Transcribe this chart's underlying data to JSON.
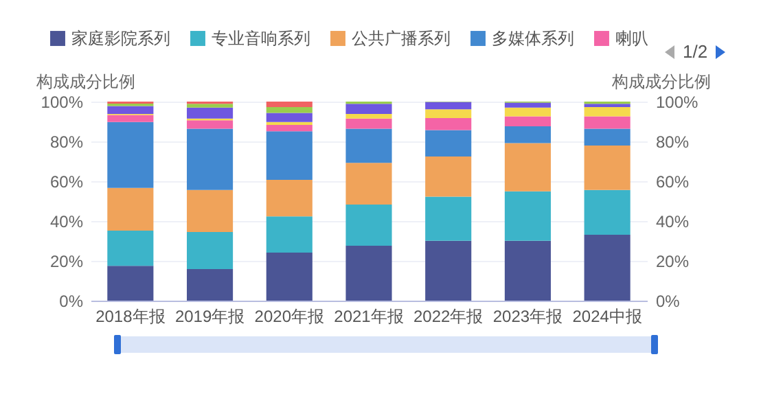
{
  "chart_data": {
    "type": "bar",
    "stacked": true,
    "ylabel": "构成成分比例",
    "y2label": "构成成分比例",
    "categories": [
      "2018年报",
      "2019年报",
      "2020年报",
      "2021年报",
      "2022年报",
      "2023年报",
      "2024中报"
    ],
    "series": [
      {
        "name": "家庭影院系列",
        "color": "#4b5595",
        "values": [
          17.5,
          15.9,
          24.1,
          27.6,
          30.1,
          30.1,
          33.1
        ]
      },
      {
        "name": "专业音响系列",
        "color": "#3cb4c9",
        "values": [
          17.7,
          18.6,
          18.2,
          20.7,
          22.1,
          24.8,
          22.5
        ]
      },
      {
        "name": "公共广播系列",
        "color": "#f0a35a",
        "values": [
          21.4,
          21.1,
          18.4,
          20.9,
          20.2,
          24.2,
          22.3
        ]
      },
      {
        "name": "多媒体系列",
        "color": "#4289d0",
        "values": [
          33.1,
          30.8,
          24.4,
          17.2,
          13.3,
          8.5,
          8.5
        ]
      },
      {
        "name": "喇叭",
        "color": "#f464a6",
        "values": [
          3.6,
          4.2,
          3.2,
          5.1,
          6.0,
          5.0,
          6.2
        ]
      },
      {
        "color": "#f5d94c",
        "values": [
          0.5,
          0.9,
          1.4,
          2.3,
          4.4,
          4.4,
          4.6
        ]
      },
      {
        "color": "#6e57e0",
        "values": [
          4.0,
          5.5,
          4.6,
          5.1,
          3.7,
          2.5,
          1.7
        ]
      },
      {
        "color": "#9acd4d",
        "values": [
          1.2,
          1.9,
          2.9,
          1.1,
          0.2,
          0.5,
          1.1
        ]
      },
      {
        "color": "#f06262",
        "values": [
          1.0,
          1.1,
          2.8,
          null,
          null,
          null,
          null
        ]
      }
    ],
    "ylim": [
      0,
      100
    ],
    "yticks": [
      {
        "value": 0,
        "label": "0%"
      },
      {
        "value": 20,
        "label": "20%"
      },
      {
        "value": 40,
        "label": "40%"
      },
      {
        "value": 60,
        "label": "60%"
      },
      {
        "value": 80,
        "label": "80%"
      },
      {
        "value": 100,
        "label": "100%"
      }
    ],
    "y2lim": [
      0,
      100
    ],
    "y2ticks": [
      {
        "value": 0,
        "label": "0%"
      },
      {
        "value": 20,
        "label": "20%"
      },
      {
        "value": 40,
        "label": "40%"
      },
      {
        "value": 60,
        "label": "60%"
      },
      {
        "value": 80,
        "label": "80%"
      },
      {
        "value": 100,
        "label": "100%"
      }
    ],
    "grid": "y",
    "legend": "top",
    "annotations": [
      "1/2"
    ]
  }
}
